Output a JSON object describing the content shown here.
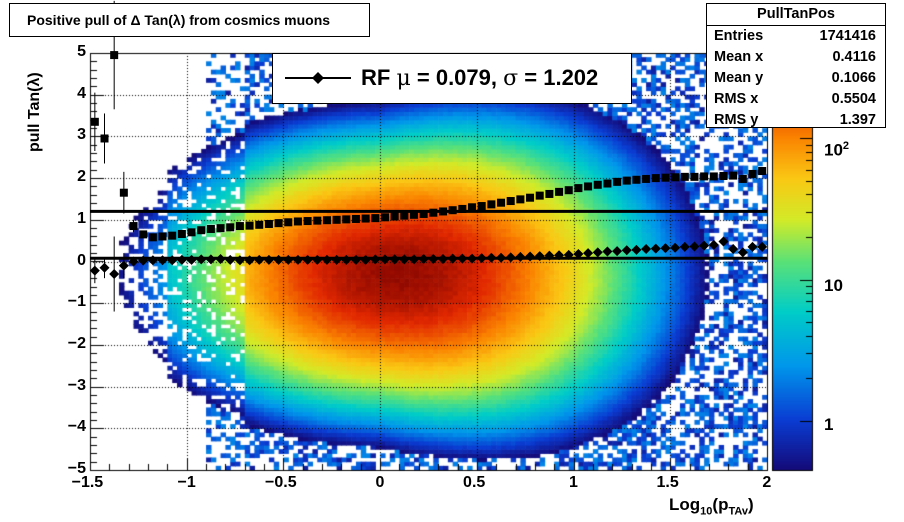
{
  "title": "Positive pull of Δ Tan(λ) from cosmics muons",
  "stats": {
    "name": "PullTanPos",
    "rows": [
      {
        "key": "Entries",
        "value": "1741416"
      },
      {
        "key": "Mean x",
        "value": "0.4116"
      },
      {
        "key": "Mean y",
        "value": "0.1066"
      },
      {
        "key": "RMS x",
        "value": "0.5504"
      },
      {
        "key": "RMS y",
        "value": "1.397"
      }
    ]
  },
  "legend": {
    "prefix": "RF ",
    "mu_symbol": "μ",
    "mu_text": " =  0.079, ",
    "sigma_symbol": "σ",
    "sigma_text": " =   1.202"
  },
  "axes": {
    "ylabel": "pull Tan(λ)",
    "xlabel_main": "Log",
    "xlabel_sub1": "10",
    "xlabel_mid": "(p",
    "xlabel_sub2": "TAv",
    "xlabel_end": ")",
    "x_ticks": [
      "−1.5",
      "−1",
      "−0.5",
      "0",
      "0.5",
      "1",
      "1.5",
      "2"
    ],
    "y_ticks": [
      "−5",
      "−4",
      "−3",
      "−2",
      "−1",
      "0",
      "1",
      "2",
      "3",
      "4",
      "5"
    ],
    "z_ticks": {
      "one": "1",
      "ten": "10",
      "hundred_base": "10",
      "hundred_exp": "2"
    }
  },
  "colors": {
    "palette": "rainbow",
    "hot": "#7a0000",
    "cold": "#1a1a8c",
    "marker": "#000000"
  },
  "chart_data": {
    "type": "heatmap",
    "x_range": [
      -1.5,
      2.0
    ],
    "y_range": [
      -5,
      5
    ],
    "z_scale": "log",
    "z_range": [
      0.45,
      400
    ],
    "grid": true,
    "peak": {
      "x": 0.1,
      "y": -0.3
    },
    "series": [
      {
        "name": "mean",
        "marker": "diamond",
        "x": [
          -1.475,
          -1.425,
          -1.375,
          -1.325,
          -1.275,
          -1.225,
          -1.175,
          -1.125,
          -1.075,
          -1.025,
          -0.975,
          -0.925,
          -0.875,
          -0.825,
          -0.775,
          -0.725,
          -0.675,
          -0.625,
          -0.575,
          -0.525,
          -0.475,
          -0.425,
          -0.375,
          -0.325,
          -0.275,
          -0.225,
          -0.175,
          -0.125,
          -0.075,
          -0.025,
          0.025,
          0.075,
          0.125,
          0.175,
          0.225,
          0.275,
          0.325,
          0.375,
          0.425,
          0.475,
          0.525,
          0.575,
          0.625,
          0.675,
          0.725,
          0.775,
          0.825,
          0.875,
          0.925,
          0.975,
          1.025,
          1.075,
          1.125,
          1.175,
          1.225,
          1.275,
          1.325,
          1.375,
          1.425,
          1.475,
          1.525,
          1.575,
          1.625,
          1.675,
          1.725,
          1.775,
          1.825,
          1.875,
          1.925,
          1.975
        ],
        "y": [
          -0.22,
          -0.15,
          -0.3,
          -0.1,
          0.0,
          0.02,
          0.03,
          0.03,
          0.03,
          0.04,
          0.04,
          0.05,
          0.05,
          0.06,
          0.04,
          0.03,
          0.03,
          0.04,
          0.04,
          0.04,
          0.04,
          0.04,
          0.04,
          0.04,
          0.04,
          0.04,
          0.04,
          0.04,
          0.04,
          0.05,
          0.05,
          0.05,
          0.05,
          0.05,
          0.06,
          0.06,
          0.06,
          0.07,
          0.07,
          0.07,
          0.08,
          0.09,
          0.09,
          0.1,
          0.11,
          0.12,
          0.13,
          0.14,
          0.15,
          0.16,
          0.18,
          0.2,
          0.22,
          0.24,
          0.25,
          0.27,
          0.28,
          0.3,
          0.31,
          0.32,
          0.33,
          0.35,
          0.36,
          0.38,
          0.4,
          0.48,
          0.3,
          0.22,
          0.35,
          0.35
        ],
        "err": [
          0.3,
          0.25,
          0.9,
          0.3,
          0.1,
          0.05,
          0,
          0,
          0,
          0,
          0,
          0,
          0,
          0,
          0,
          0,
          0,
          0,
          0,
          0,
          0,
          0,
          0,
          0,
          0,
          0,
          0,
          0,
          0,
          0,
          0,
          0,
          0,
          0,
          0,
          0,
          0,
          0,
          0,
          0,
          0,
          0,
          0,
          0,
          0,
          0,
          0,
          0,
          0,
          0,
          0,
          0,
          0,
          0,
          0,
          0,
          0,
          0,
          0,
          0,
          0,
          0,
          0,
          0,
          0,
          0,
          0,
          0,
          0,
          0
        ]
      },
      {
        "name": "rms",
        "marker": "square",
        "x": [
          -1.475,
          -1.425,
          -1.375,
          -1.325,
          -1.275,
          -1.225,
          -1.175,
          -1.125,
          -1.075,
          -1.025,
          -0.975,
          -0.925,
          -0.875,
          -0.825,
          -0.775,
          -0.725,
          -0.675,
          -0.625,
          -0.575,
          -0.525,
          -0.475,
          -0.425,
          -0.375,
          -0.325,
          -0.275,
          -0.225,
          -0.175,
          -0.125,
          -0.075,
          -0.025,
          0.025,
          0.075,
          0.125,
          0.175,
          0.225,
          0.275,
          0.325,
          0.375,
          0.425,
          0.475,
          0.525,
          0.575,
          0.625,
          0.675,
          0.725,
          0.775,
          0.825,
          0.875,
          0.925,
          0.975,
          1.025,
          1.075,
          1.125,
          1.175,
          1.225,
          1.275,
          1.325,
          1.375,
          1.425,
          1.475,
          1.525,
          1.575,
          1.625,
          1.675,
          1.725,
          1.775,
          1.825,
          1.875,
          1.925,
          1.975
        ],
        "y": [
          3.35,
          2.95,
          4.95,
          1.65,
          0.85,
          0.65,
          0.58,
          0.6,
          0.62,
          0.66,
          0.7,
          0.75,
          0.78,
          0.8,
          0.82,
          0.85,
          0.86,
          0.88,
          0.9,
          0.92,
          0.94,
          0.96,
          0.97,
          0.98,
          0.99,
          1.0,
          1.01,
          1.02,
          1.03,
          1.04,
          1.06,
          1.08,
          1.1,
          1.12,
          1.14,
          1.17,
          1.2,
          1.23,
          1.26,
          1.3,
          1.33,
          1.37,
          1.41,
          1.45,
          1.49,
          1.53,
          1.58,
          1.62,
          1.67,
          1.71,
          1.76,
          1.8,
          1.84,
          1.87,
          1.91,
          1.94,
          1.96,
          1.98,
          2.0,
          2.01,
          2.02,
          2.03,
          2.03,
          2.04,
          2.04,
          2.05,
          2.06,
          1.98,
          2.1,
          2.17
        ],
        "err": [
          0.7,
          0.6,
          1.3,
          0.5,
          0.15,
          0.06,
          0,
          0,
          0,
          0,
          0,
          0,
          0,
          0,
          0,
          0,
          0,
          0,
          0,
          0,
          0,
          0,
          0,
          0,
          0,
          0,
          0,
          0,
          0,
          0,
          0,
          0,
          0,
          0,
          0,
          0,
          0,
          0,
          0,
          0,
          0,
          0,
          0,
          0,
          0,
          0,
          0,
          0,
          0,
          0,
          0,
          0,
          0,
          0,
          0,
          0,
          0,
          0,
          0,
          0,
          0,
          0,
          0,
          0,
          0,
          0,
          0,
          0,
          0,
          0
        ]
      }
    ],
    "hlines": [
      {
        "name": "line-sigma",
        "y": 1.202
      },
      {
        "name": "line-mu",
        "y": 0.079
      }
    ]
  }
}
